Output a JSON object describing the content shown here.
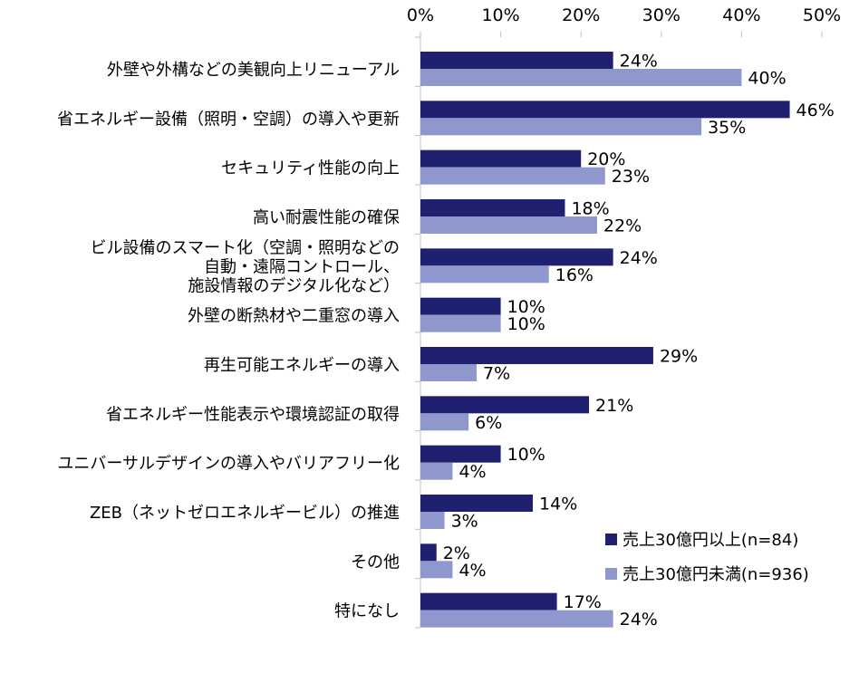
{
  "chart_data": {
    "type": "bar",
    "orientation": "horizontal",
    "categories": [
      "外壁や外構などの美観向上リニューアル",
      "省エネルギー設備（照明・空調）の導入や更新",
      "セキュリティ性能の向上",
      "高い耐震性能の確保",
      "ビル設備のスマート化（空調・照明などの\n自動・遠隔コントロール、\n施設情報のデジタル化など）",
      "外壁の断熱材や二重窓の導入",
      "再生可能エネルギーの導入",
      "省エネルギー性能表示や環境認証の取得",
      "ユニバーサルデザインの導入やバリアフリー化",
      "ZEB（ネットゼロエネルギービル）の推進",
      "その他",
      "特になし"
    ],
    "series": [
      {
        "name": "売上30億円以上(n=84)",
        "color": "#1f2170",
        "values": [
          24,
          46,
          20,
          18,
          24,
          10,
          29,
          21,
          10,
          14,
          2,
          17
        ],
        "labels": [
          "24%",
          "46%",
          "20%",
          "18%",
          "24%",
          "10%",
          "29%",
          "21%",
          "10%",
          "14%",
          "2%",
          "17%"
        ]
      },
      {
        "name": "売上30億円未満(n=936)",
        "color": "#8f98cc",
        "values": [
          40,
          35,
          23,
          22,
          16,
          10,
          7,
          6,
          4,
          3,
          4,
          24
        ],
        "labels": [
          "40%",
          "35%",
          "23%",
          "22%",
          "16%",
          "10%",
          "7%",
          "6%",
          "4%",
          "3%",
          "4%",
          "24%"
        ]
      }
    ],
    "xlim": [
      0,
      50
    ],
    "xticks": [
      "0%",
      "10%",
      "20%",
      "30%",
      "40%",
      "50%"
    ],
    "axis_position": "top",
    "grid": false,
    "legend_position": "bottom-right",
    "title": "",
    "xlabel": "",
    "ylabel": ""
  }
}
